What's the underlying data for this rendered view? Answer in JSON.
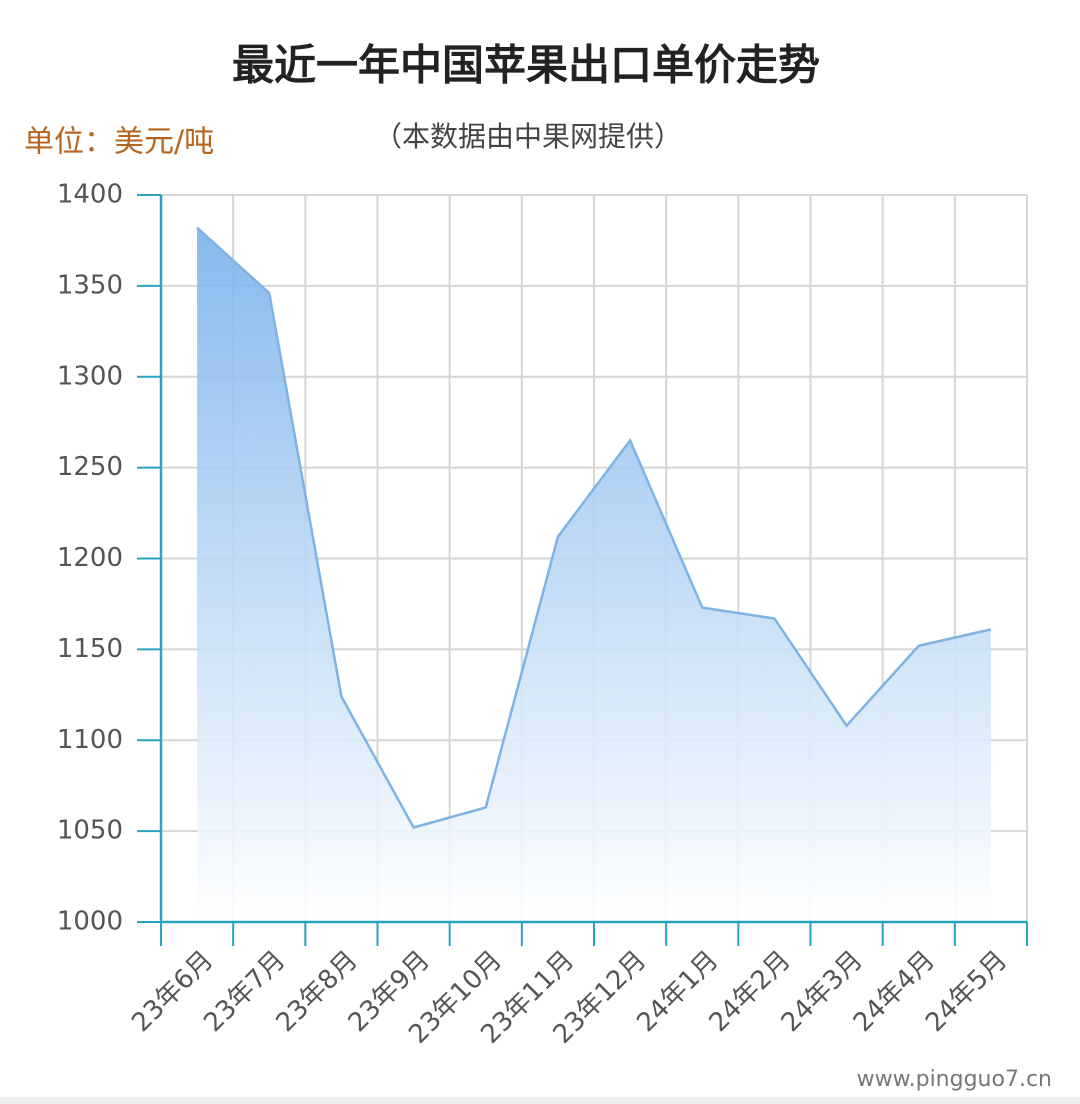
{
  "chart_data": {
    "type": "area",
    "title": "最近一年中国苹果出口单价走势",
    "subtitle": "（本数据由中果网提供）",
    "unit_label": "单位：美元/吨",
    "watermark": "www.pingguo7.cn",
    "categories": [
      "23年6月",
      "23年7月",
      "23年8月",
      "23年9月",
      "23年10月",
      "23年11月",
      "23年12月",
      "24年1月",
      "24年2月",
      "24年3月",
      "24年4月",
      "24年5月"
    ],
    "values": [
      1382,
      1346,
      1124,
      1052,
      1063,
      1212,
      1265,
      1173,
      1167,
      1108,
      1152,
      1161
    ],
    "color": "#7fb3e3",
    "ylim": [
      1000,
      1400
    ],
    "yticks": [
      1000,
      1050,
      1100,
      1150,
      1200,
      1250,
      1300,
      1350,
      1400
    ],
    "grid": true
  }
}
